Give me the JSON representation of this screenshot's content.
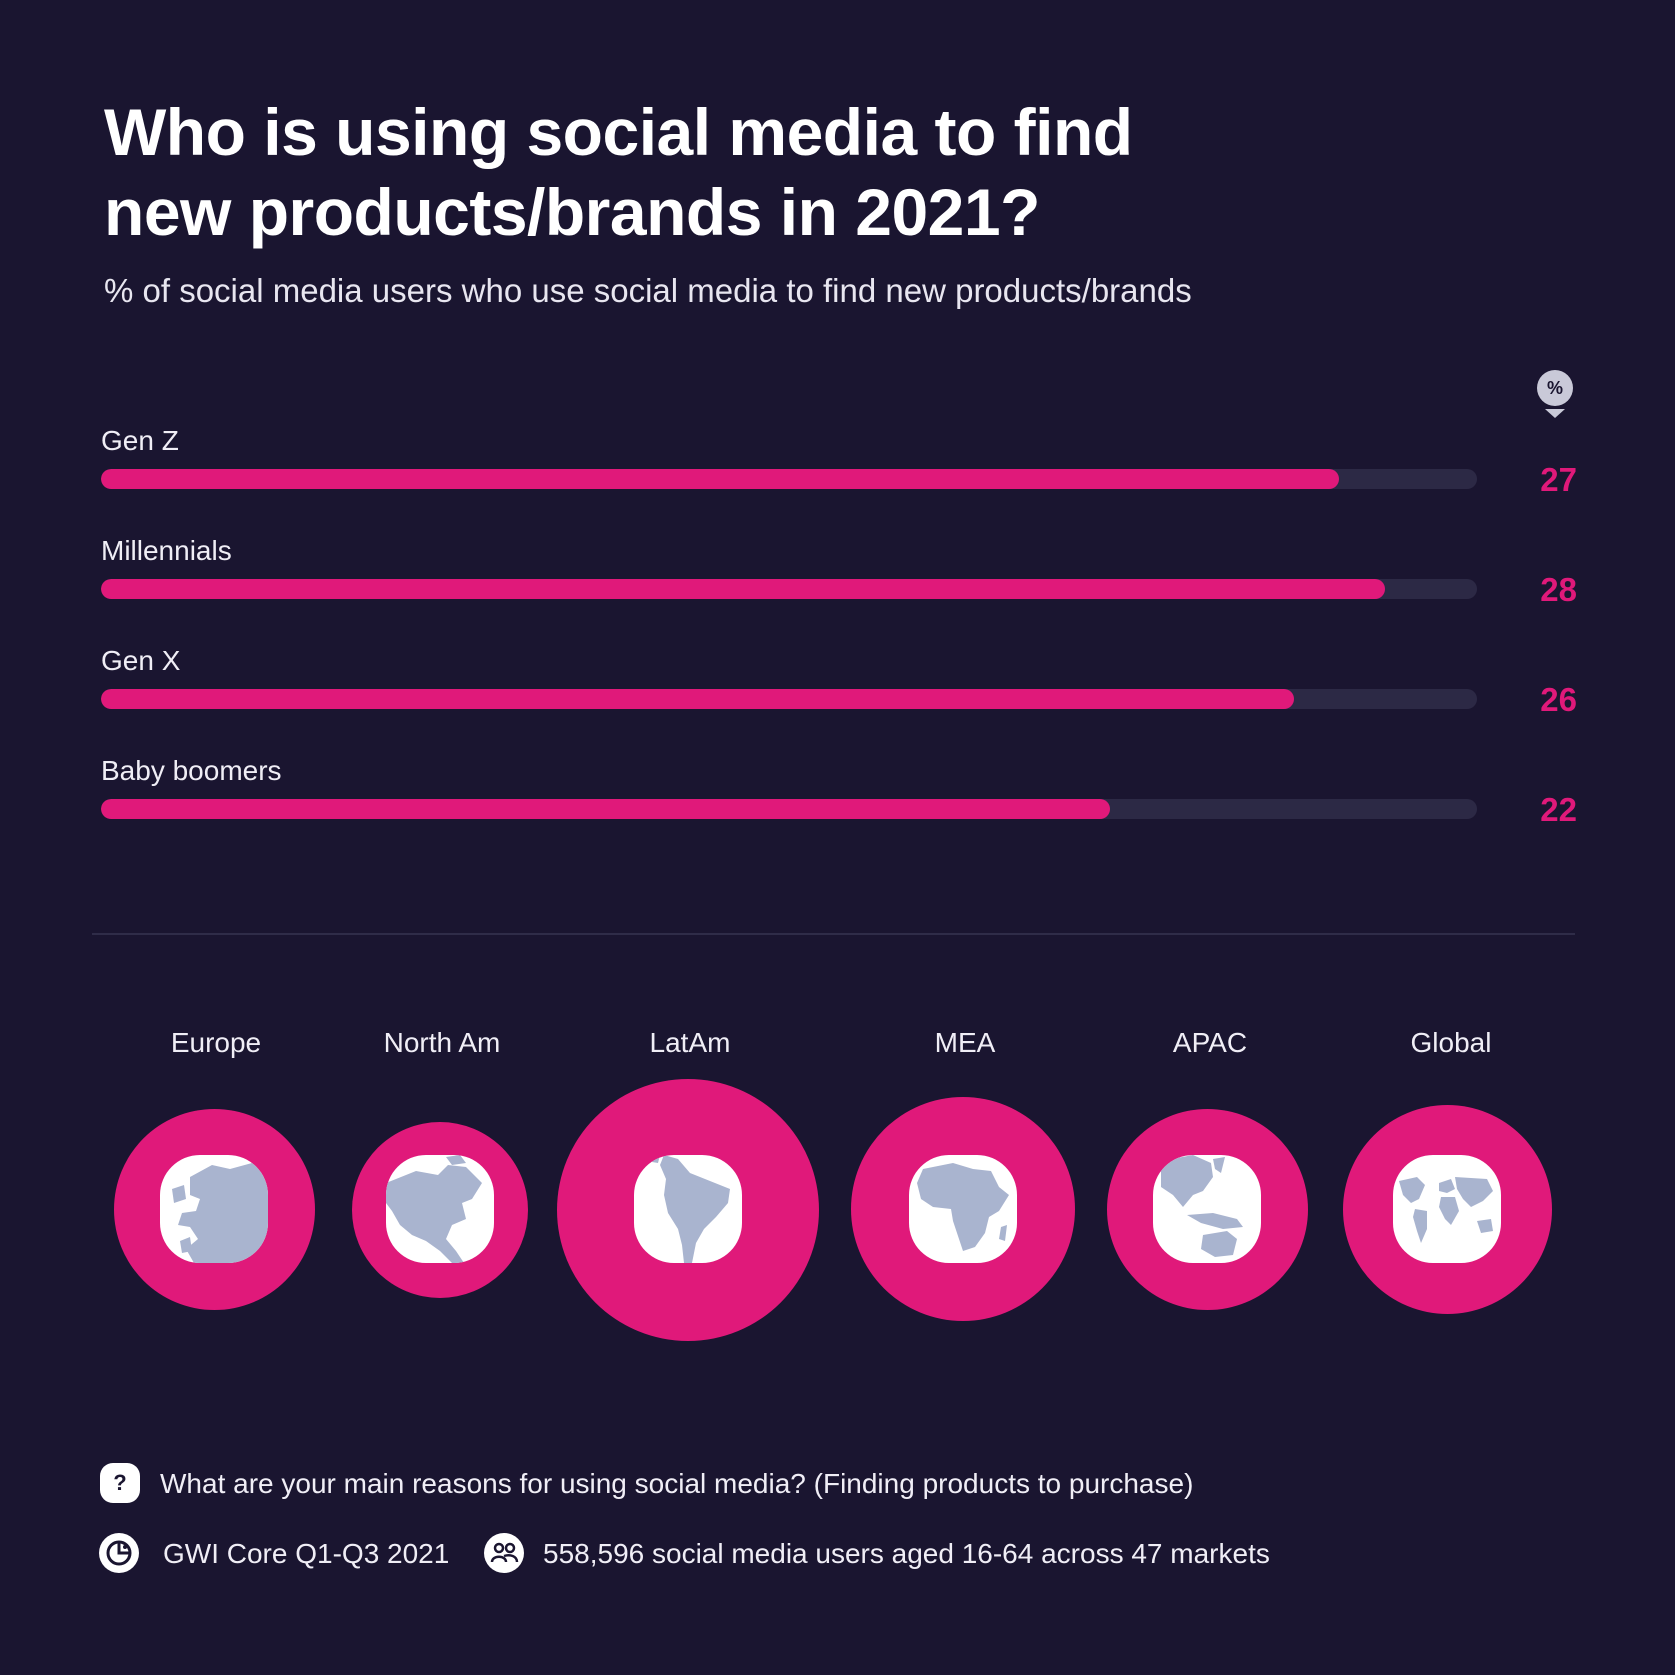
{
  "title_line1": "Who is using social media to find",
  "title_line2": "new products/brands in 2021?",
  "subtitle": "% of social media users who use social media to find new products/brands",
  "unit_badge": "%",
  "colors": {
    "background": "#1a1530",
    "accent": "#e0197a",
    "track": "#2c2945",
    "map": "#a9b4cf"
  },
  "chart_data": [
    {
      "type": "bar",
      "orientation": "horizontal",
      "categories": [
        "Gen Z",
        "Millennials",
        "Gen X",
        "Baby boomers"
      ],
      "values": [
        27,
        28,
        26,
        22
      ],
      "xlim": [
        0,
        30
      ],
      "unit": "%"
    },
    {
      "type": "bubble",
      "categories": [
        "Europe",
        "North Am",
        "LatAm",
        "MEA",
        "APAC",
        "Global"
      ],
      "icons": [
        "europe-map-icon",
        "north-america-map-icon",
        "south-america-map-icon",
        "africa-map-icon",
        "asia-pacific-map-icon",
        "world-map-icon"
      ]
    }
  ],
  "footer": {
    "question": "What are your main reasons for using social media? (Finding products to purchase)",
    "source": "GWI Core Q1-Q3 2021",
    "sample": "558,596 social media users aged 16-64 across 47 markets",
    "question_icon": "question-icon",
    "source_icon": "data-source-icon",
    "sample_icon": "people-icon"
  }
}
